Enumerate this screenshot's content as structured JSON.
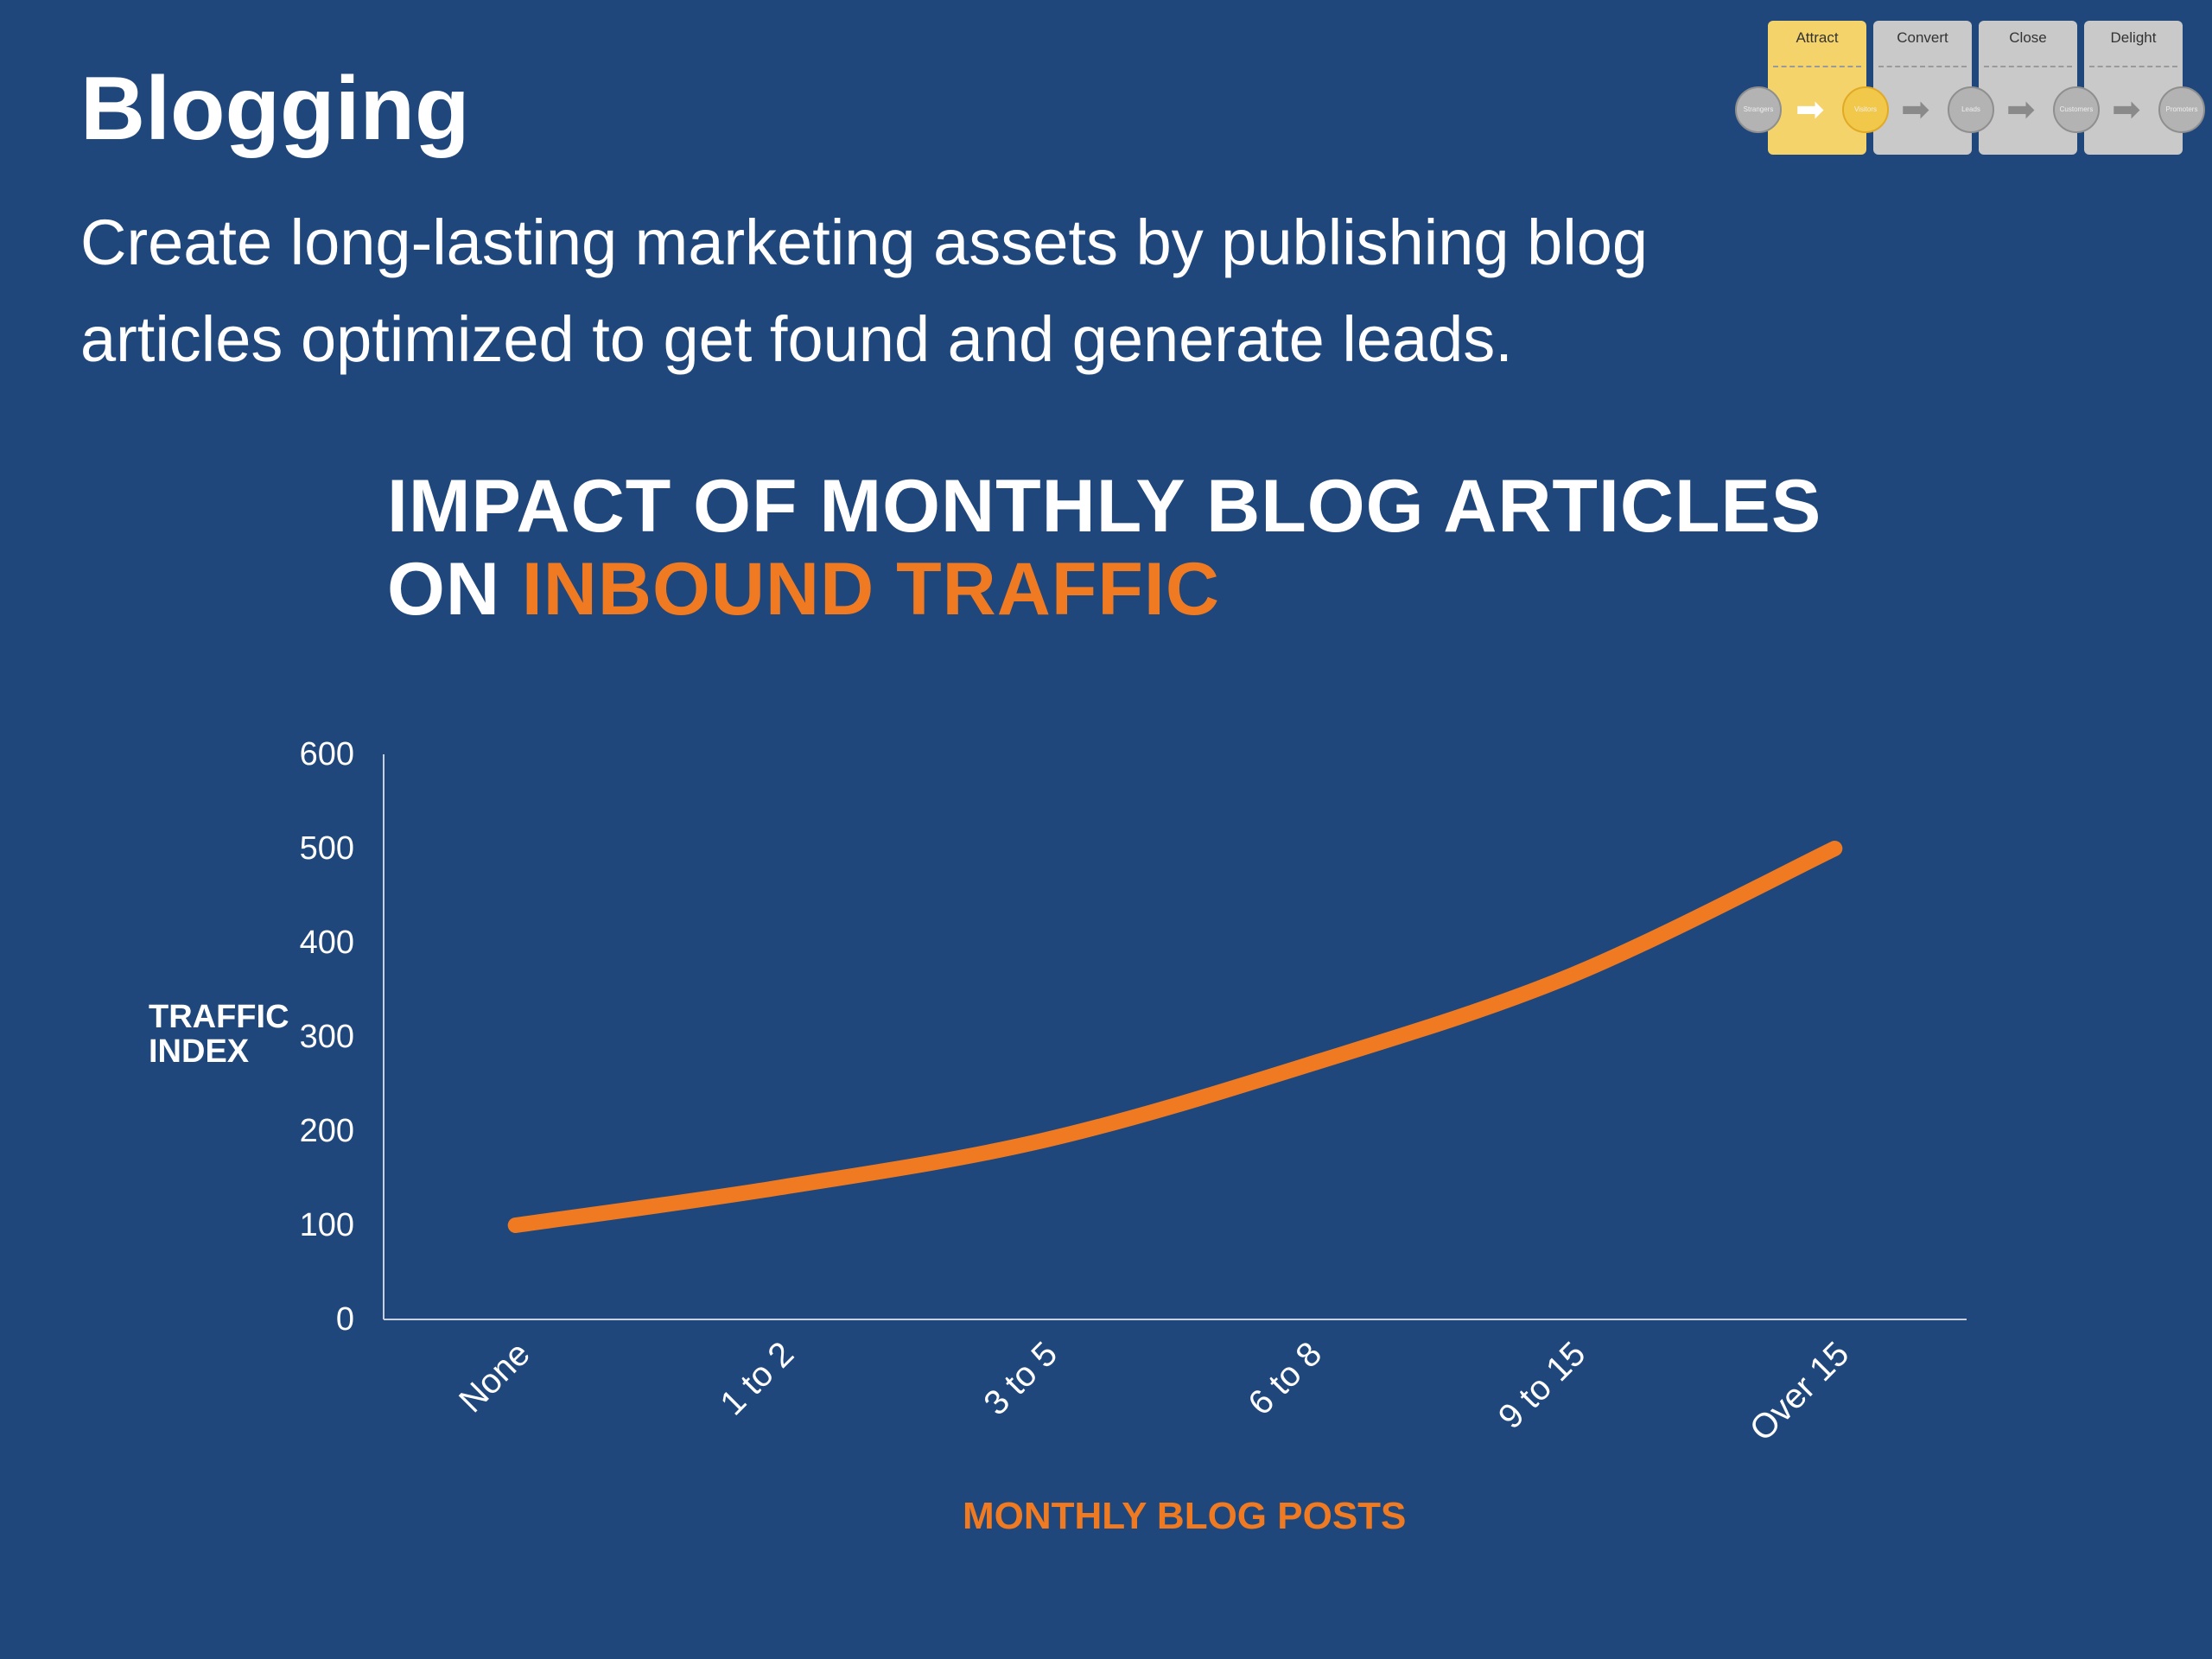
{
  "slide": {
    "title": "Blogging",
    "subtitle": "Create long-lasting marketing assets by publishing blog articles optimized to get found and generate leads."
  },
  "funnel": {
    "stages": [
      "Attract",
      "Convert",
      "Close",
      "Delight"
    ],
    "active_stage": "Attract",
    "nodes": [
      "Strangers",
      "Visitors",
      "Leads",
      "Customers",
      "Promoters"
    ],
    "colors": {
      "active": "#f5d36b",
      "inactive": "#c9c9c9"
    }
  },
  "chart_data": {
    "type": "line",
    "title_line1": "IMPACT OF MONTHLY BLOG ARTICLES",
    "title_line2_prefix": "ON ",
    "title_line2_accent": "INBOUND TRAFFIC",
    "xlabel": "MONTHLY BLOG POSTS",
    "ylabel": "TRAFFIC INDEX",
    "categories": [
      "None",
      "1 to 2",
      "3 to 5",
      "6 to 8",
      "9 to 15",
      "Over 15"
    ],
    "y_ticks": [
      "0",
      "100",
      "200",
      "300",
      "400",
      "500",
      "600"
    ],
    "ylim": [
      0,
      600
    ],
    "series": [
      {
        "values": [
          100,
          140,
          190,
          270,
          365,
          500
        ]
      }
    ],
    "grid": false,
    "colors": {
      "line": "#ef7a22",
      "axis": "#c7d0dc",
      "accent": "#ef7a22",
      "background": "#1f477b"
    }
  }
}
